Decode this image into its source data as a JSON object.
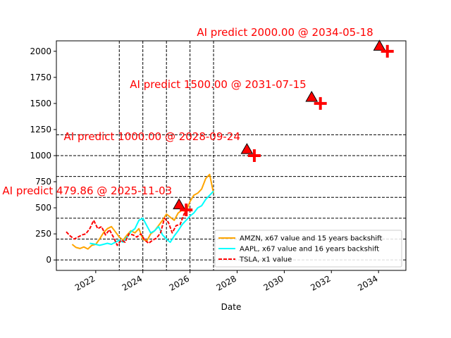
{
  "chart_data": {
    "type": "line",
    "title": "",
    "xlabel": "Date",
    "ylabel": "",
    "xlim": [
      "2020-05-01",
      "2035-03-01"
    ],
    "ylim": [
      -100,
      2100
    ],
    "x_ticks": [
      "2022",
      "2024",
      "2026",
      "2028",
      "2030",
      "2032",
      "2034"
    ],
    "y_ticks": [
      0,
      250,
      500,
      750,
      1000,
      1250,
      1500,
      1750,
      2000
    ],
    "grid": false,
    "legend_position": "lower-right",
    "horizontal_lines": [
      0,
      200,
      400,
      600,
      800,
      1000,
      1200
    ],
    "vertical_lines": [
      "2023-01-01",
      "2024-01-01",
      "2025-01-01",
      "2026-01-01",
      "2027-01-01"
    ],
    "series": [
      {
        "name": "AMZN, x67 value and 15 years backshift",
        "color": "#ffa500",
        "style": "solid",
        "points": [
          [
            "2021-01-01",
            150
          ],
          [
            "2021-03-01",
            120
          ],
          [
            "2021-05-01",
            110
          ],
          [
            "2021-07-01",
            125
          ],
          [
            "2021-09-01",
            105
          ],
          [
            "2021-11-01",
            140
          ],
          [
            "2022-01-01",
            150
          ],
          [
            "2022-03-01",
            200
          ],
          [
            "2022-05-01",
            260
          ],
          [
            "2022-07-01",
            300
          ],
          [
            "2022-09-01",
            320
          ],
          [
            "2022-11-01",
            270
          ],
          [
            "2023-01-01",
            220
          ],
          [
            "2023-03-01",
            190
          ],
          [
            "2023-05-01",
            240
          ],
          [
            "2023-07-01",
            280
          ],
          [
            "2023-09-01",
            260
          ],
          [
            "2023-11-01",
            300
          ],
          [
            "2024-01-01",
            200
          ],
          [
            "2024-03-01",
            180
          ],
          [
            "2024-05-01",
            250
          ],
          [
            "2024-07-01",
            280
          ],
          [
            "2024-09-01",
            330
          ],
          [
            "2024-11-01",
            380
          ],
          [
            "2025-01-01",
            440
          ],
          [
            "2025-03-01",
            410
          ],
          [
            "2025-05-01",
            380
          ],
          [
            "2025-07-01",
            450
          ],
          [
            "2025-09-01",
            480
          ],
          [
            "2025-11-01",
            460
          ],
          [
            "2026-01-01",
            560
          ],
          [
            "2026-03-01",
            620
          ],
          [
            "2026-05-01",
            640
          ],
          [
            "2026-07-01",
            680
          ],
          [
            "2026-09-01",
            780
          ],
          [
            "2026-11-01",
            820
          ],
          [
            "2027-01-01",
            640
          ]
        ]
      },
      {
        "name": "AAPL, x67 value and 16 years backshift",
        "color": "#00ffff",
        "style": "solid",
        "points": [
          [
            "2021-10-01",
            160
          ],
          [
            "2022-01-01",
            150
          ],
          [
            "2022-03-01",
            140
          ],
          [
            "2022-05-01",
            150
          ],
          [
            "2022-07-01",
            160
          ],
          [
            "2022-09-01",
            150
          ],
          [
            "2022-11-01",
            170
          ],
          [
            "2023-01-01",
            190
          ],
          [
            "2023-03-01",
            170
          ],
          [
            "2023-05-01",
            220
          ],
          [
            "2023-07-01",
            270
          ],
          [
            "2023-09-01",
            300
          ],
          [
            "2023-11-01",
            380
          ],
          [
            "2024-01-01",
            400
          ],
          [
            "2024-03-01",
            330
          ],
          [
            "2024-05-01",
            260
          ],
          [
            "2024-07-01",
            280
          ],
          [
            "2024-09-01",
            320
          ],
          [
            "2024-11-01",
            240
          ],
          [
            "2025-01-01",
            200
          ],
          [
            "2025-03-01",
            170
          ],
          [
            "2025-05-01",
            230
          ],
          [
            "2025-07-01",
            280
          ],
          [
            "2025-09-01",
            340
          ],
          [
            "2025-11-01",
            380
          ],
          [
            "2026-01-01",
            420
          ],
          [
            "2026-03-01",
            450
          ],
          [
            "2026-05-01",
            500
          ],
          [
            "2026-07-01",
            520
          ],
          [
            "2026-09-01",
            580
          ],
          [
            "2026-11-01",
            620
          ],
          [
            "2027-01-01",
            660
          ]
        ]
      },
      {
        "name": "TSLA, x1 value",
        "color": "#ff0000",
        "style": "dashed",
        "points": [
          [
            "2020-10-01",
            270
          ],
          [
            "2020-12-01",
            230
          ],
          [
            "2021-02-01",
            200
          ],
          [
            "2021-04-01",
            220
          ],
          [
            "2021-06-01",
            240
          ],
          [
            "2021-08-01",
            250
          ],
          [
            "2021-10-01",
            300
          ],
          [
            "2021-12-01",
            380
          ],
          [
            "2022-02-01",
            300
          ],
          [
            "2022-04-01",
            320
          ],
          [
            "2022-06-01",
            240
          ],
          [
            "2022-08-01",
            290
          ],
          [
            "2022-10-01",
            220
          ],
          [
            "2022-12-01",
            140
          ],
          [
            "2023-02-01",
            190
          ],
          [
            "2023-04-01",
            170
          ],
          [
            "2023-06-01",
            250
          ],
          [
            "2023-08-01",
            240
          ],
          [
            "2023-10-01",
            220
          ],
          [
            "2023-12-01",
            250
          ],
          [
            "2024-02-01",
            190
          ],
          [
            "2024-04-01",
            160
          ],
          [
            "2024-06-01",
            190
          ],
          [
            "2024-08-01",
            210
          ],
          [
            "2024-10-01",
            260
          ],
          [
            "2024-12-01",
            400
          ],
          [
            "2025-02-01",
            360
          ],
          [
            "2025-04-01",
            260
          ],
          [
            "2025-06-01",
            330
          ],
          [
            "2025-08-01",
            340
          ],
          [
            "2025-10-01",
            440
          ],
          [
            "2025-11-03",
            479.86
          ]
        ]
      }
    ],
    "predictions": [
      {
        "label": "AI predict 479.86 @ 2025-11-03",
        "date": "2025-11-03",
        "value": 479.86,
        "triangle": {
          "date": "2025-07-15",
          "value": 530
        }
      },
      {
        "label": "AI predict 1000.00 @ 2028-09-24",
        "date": "2028-09-24",
        "value": 1000,
        "triangle": {
          "date": "2028-06-01",
          "value": 1060
        }
      },
      {
        "label": "AI predict 1500.00 @ 2031-07-15",
        "date": "2031-07-15",
        "value": 1500,
        "triangle": {
          "date": "2031-03-01",
          "value": 1560
        }
      },
      {
        "label": "AI predict 2000.00 @ 2034-05-18",
        "date": "2034-05-18",
        "value": 2000,
        "triangle": {
          "date": "2034-01-15",
          "value": 2050
        }
      }
    ]
  }
}
